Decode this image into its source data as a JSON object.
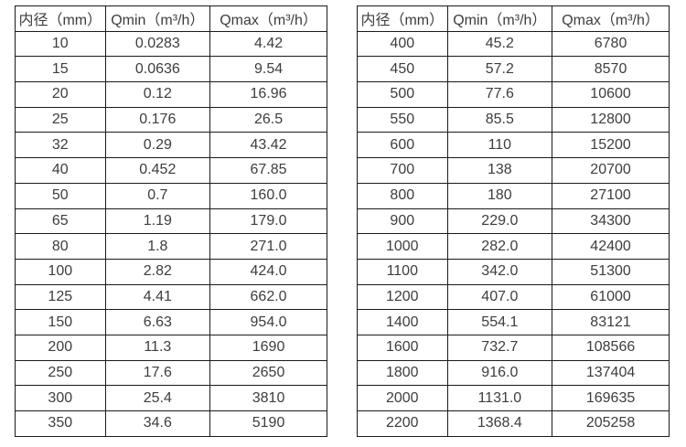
{
  "style": {
    "background": "#ffffff",
    "border_color": "#1a1a1a",
    "text_color": "#3d3d3d"
  },
  "tables": [
    {
      "name": "small-diameter-flow-table",
      "headers": [
        "内径（mm）",
        "Qmin（m³/h）",
        "Qmax（m³/h）"
      ],
      "rows": [
        [
          "10",
          "0.0283",
          "4.42"
        ],
        [
          "15",
          "0.0636",
          "9.54"
        ],
        [
          "20",
          "0.12",
          "16.96"
        ],
        [
          "25",
          "0.176",
          "26.5"
        ],
        [
          "32",
          "0.29",
          "43.42"
        ],
        [
          "40",
          "0.452",
          "67.85"
        ],
        [
          "50",
          "0.7",
          "160.0"
        ],
        [
          "65",
          "1.19",
          "179.0"
        ],
        [
          "80",
          "1.8",
          "271.0"
        ],
        [
          "100",
          "2.82",
          "424.0"
        ],
        [
          "125",
          "4.41",
          "662.0"
        ],
        [
          "150",
          "6.63",
          "954.0"
        ],
        [
          "200",
          "11.3",
          "1690"
        ],
        [
          "250",
          "17.6",
          "2650"
        ],
        [
          "300",
          "25.4",
          "3810"
        ],
        [
          "350",
          "34.6",
          "5190"
        ]
      ]
    },
    {
      "name": "large-diameter-flow-table",
      "headers": [
        "内径（mm）",
        "Qmin（m³/h）",
        "Qmax（m³/h）"
      ],
      "rows": [
        [
          "400",
          "45.2",
          "6780"
        ],
        [
          "450",
          "57.2",
          "8570"
        ],
        [
          "500",
          "77.6",
          "10600"
        ],
        [
          "550",
          "85.5",
          "12800"
        ],
        [
          "600",
          "110",
          "15200"
        ],
        [
          "700",
          "138",
          "20700"
        ],
        [
          "800",
          "180",
          "27100"
        ],
        [
          "900",
          "229.0",
          "34300"
        ],
        [
          "1000",
          "282.0",
          "42400"
        ],
        [
          "1100",
          "342.0",
          "51300"
        ],
        [
          "1200",
          "407.0",
          "61000"
        ],
        [
          "1400",
          "554.1",
          "83121"
        ],
        [
          "1600",
          "732.7",
          "108566"
        ],
        [
          "1800",
          "916.0",
          "137404"
        ],
        [
          "2000",
          "1131.0",
          "169635"
        ],
        [
          "2200",
          "1368.4",
          "205258"
        ]
      ]
    }
  ]
}
